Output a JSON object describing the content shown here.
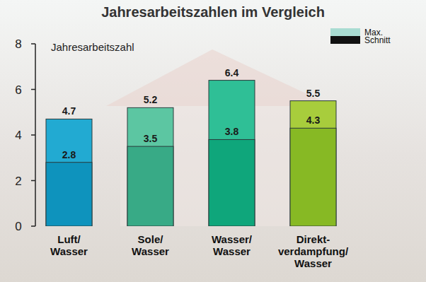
{
  "chart_data": {
    "type": "bar",
    "title": "Jahresarbeitszahlen im Vergleich",
    "y_label": "Jahresarbeitszahl",
    "categories": [
      "Luft/\nWasser",
      "Sole/\nWasser",
      "Wasser/\nWasser",
      "Direkt-\nverdampfung/\nWasser"
    ],
    "series": [
      {
        "name": "Max.",
        "color": "#a9dcd2",
        "colors": [
          "#22aad2",
          "#5cc6a2",
          "#2fbf96",
          "#a8cd3c"
        ],
        "values": [
          4.7,
          5.2,
          6.4,
          5.5
        ]
      },
      {
        "name": "Schnitt",
        "color": "#111111",
        "colors": [
          "#0e93bd",
          "#38aa86",
          "#0fa67b",
          "#87b924"
        ],
        "values": [
          2.8,
          3.5,
          3.8,
          4.3
        ]
      }
    ],
    "ylim": [
      0,
      8
    ],
    "yticks": [
      0,
      2,
      4,
      6,
      8
    ],
    "grid": false,
    "legend": "top right",
    "data_labels": true
  }
}
